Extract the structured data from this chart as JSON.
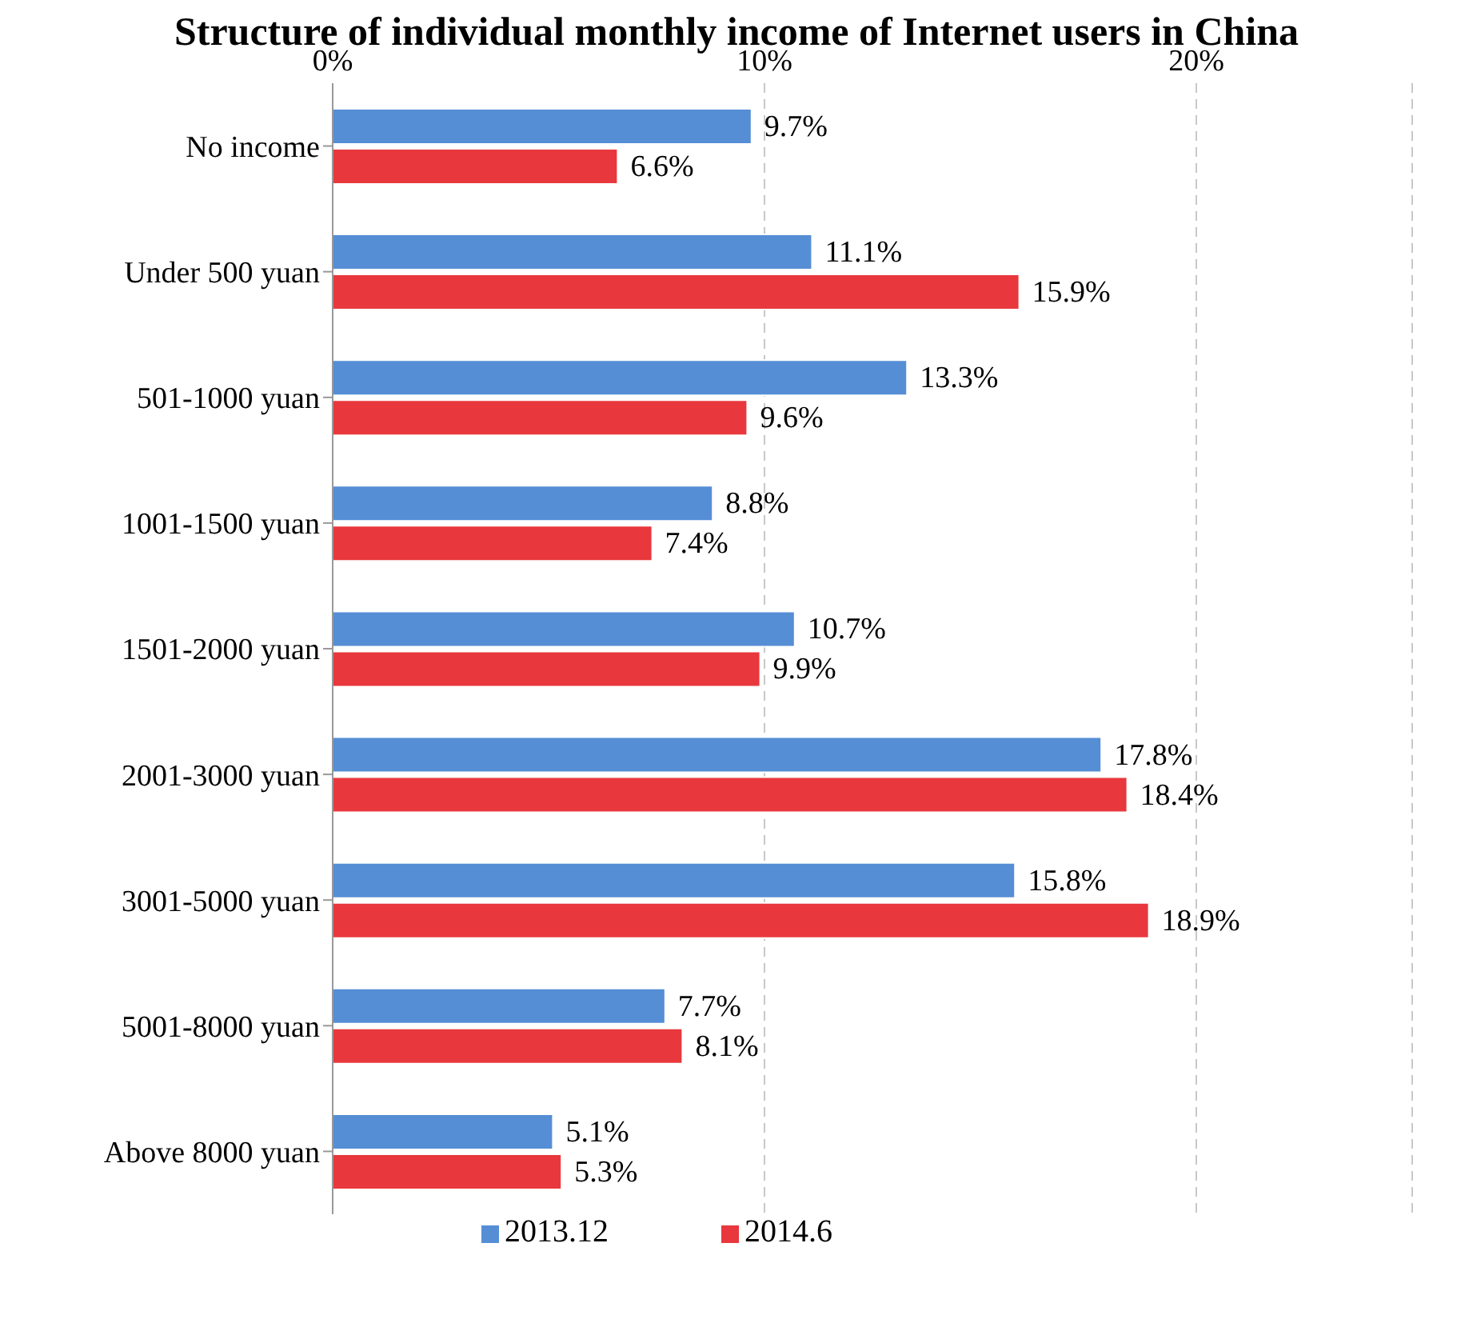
{
  "chart_data": {
    "type": "bar",
    "orientation": "horizontal",
    "title": "Structure of individual monthly income of Internet users in China",
    "categories": [
      "No income",
      "Under 500 yuan",
      "501-1000 yuan",
      "1001-1500 yuan",
      "1501-2000 yuan",
      "2001-3000 yuan",
      "3001-5000 yuan",
      "5001-8000 yuan",
      "Above 8000 yuan"
    ],
    "series": [
      {
        "name": "2013.12",
        "color": "#558ed5",
        "values": [
          9.7,
          11.1,
          13.3,
          8.8,
          10.7,
          17.8,
          15.8,
          7.7,
          5.1
        ],
        "value_labels": [
          "9.7%",
          "11.1%",
          "13.3%",
          "8.8%",
          "10.7%",
          "17.8%",
          "15.8%",
          "7.7%",
          "5.1%"
        ]
      },
      {
        "name": "2014.6",
        "color": "#e8383d",
        "values": [
          6.6,
          15.9,
          9.6,
          7.4,
          9.9,
          18.4,
          18.9,
          8.1,
          5.3
        ],
        "value_labels": [
          "6.6%",
          "15.9%",
          "9.6%",
          "7.4%",
          "9.9%",
          "18.4%",
          "18.9%",
          "8.1%",
          "5.3%"
        ]
      }
    ],
    "xlim": [
      0,
      25
    ],
    "xticks": [
      {
        "value": 0,
        "label": "0%"
      },
      {
        "value": 10,
        "label": "10%"
      },
      {
        "value": 20,
        "label": "20%"
      }
    ],
    "grid": "x",
    "legend": "bottom"
  }
}
